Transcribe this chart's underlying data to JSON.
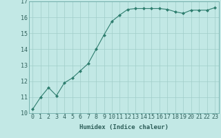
{
  "x": [
    0,
    1,
    2,
    3,
    4,
    5,
    6,
    7,
    8,
    9,
    10,
    11,
    12,
    13,
    14,
    15,
    16,
    17,
    18,
    19,
    20,
    21,
    22,
    23
  ],
  "y": [
    10.25,
    11.0,
    11.6,
    11.1,
    11.9,
    12.2,
    12.65,
    13.1,
    14.0,
    14.9,
    15.75,
    16.15,
    16.5,
    16.55,
    16.55,
    16.55,
    16.55,
    16.5,
    16.35,
    16.25,
    16.45,
    16.45,
    16.45,
    16.6
  ],
  "line_color": "#2e7d6e",
  "marker": "D",
  "marker_size": 2,
  "bg_color": "#c2e8e5",
  "grid_color": "#a0cdc9",
  "xlabel": "Humidex (Indice chaleur)",
  "xlim": [
    -0.5,
    23.5
  ],
  "ylim": [
    10,
    17
  ],
  "xtick_labels": [
    "0",
    "1",
    "2",
    "3",
    "4",
    "5",
    "6",
    "7",
    "8",
    "9",
    "10",
    "11",
    "12",
    "13",
    "14",
    "15",
    "16",
    "17",
    "18",
    "19",
    "20",
    "21",
    "22",
    "23"
  ],
  "ytick_values": [
    10,
    11,
    12,
    13,
    14,
    15,
    16,
    17
  ],
  "xlabel_fontsize": 6.5,
  "tick_fontsize": 6
}
